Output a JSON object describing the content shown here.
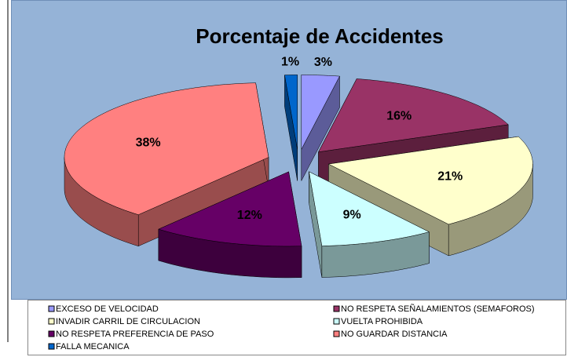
{
  "chart_data": {
    "type": "pie",
    "title": "Porcentaje de Accidentes",
    "categories": [
      "EXCESO DE VELOCIDAD",
      "NO RESPETA SEÑALAMIENTOS (SEMAFOROS)",
      "INVADIR CARRIL DE CIRCULACION",
      "VUELTA PROHIBIDA",
      "NO RESPETA PREFERENCIA DE PASO",
      "NO GUARDAR DISTANCIA",
      "FALLA MECANICA"
    ],
    "values": [
      3,
      16,
      21,
      9,
      12,
      38,
      1
    ],
    "value_labels": [
      "3%",
      "16%",
      "21%",
      "9%",
      "12%",
      "38%",
      "1%"
    ],
    "colors": [
      "#9999ff",
      "#993366",
      "#ffffcc",
      "#ccffff",
      "#660066",
      "#ff8080",
      "#0066cc"
    ],
    "legend": "bottom"
  }
}
